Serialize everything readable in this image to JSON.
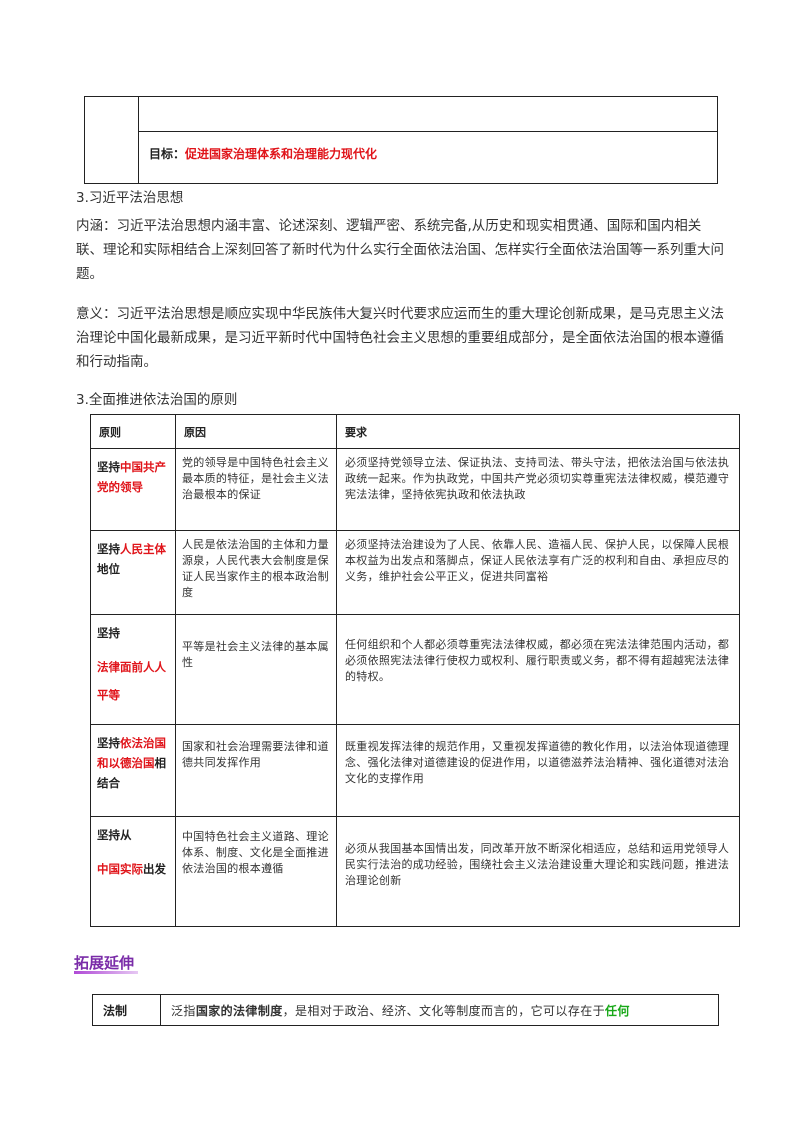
{
  "top_box": {
    "goal_label": "目标：",
    "goal_text": "促进国家治理体系和治理能力现代化"
  },
  "section_xi": {
    "heading": "3.习近平法治思想",
    "connotation_label": "内涵：",
    "connotation_text": "习近平法治思想内涵丰富、论述深刻、逻辑严密、系统完备,从历史和现实相贯通、国际和国内相关联、理论和实际相结合上深刻回答了新时代为什么实行全面依法治国、怎样实行全面依法治国等一系列重大问题。",
    "meaning_label": "意义：",
    "meaning_text": "习近平法治思想是顺应实现中华民族伟大复兴时代要求应运而生的重大理论创新成果，是马克思主义法治理论中国化最新成果，是习近平新时代中国特色社会主义思想的重要组成部分，是全面依法治国的根本遵循和行动指南。"
  },
  "section_principles": {
    "heading": "3.全面推进依法治国的原则",
    "headers": [
      "原则",
      "原因",
      "要求"
    ],
    "rows": [
      {
        "p_pre": "坚持",
        "p_red": "中国共产党的领导",
        "p_post": "",
        "reason": "党的领导是中国特色社会主义最本质的特征，是社会主义法治最根本的保证",
        "requirement": "必须坚持党领导立法、保证执法、支持司法、带头守法，把依法治国与依法执政统一起来。作为执政党，中国共产党必须切实尊重宪法法律权威，模范遵守宪法法律，坚持依宪执政和依法执政"
      },
      {
        "p_pre": "坚持",
        "p_red": "人民主体",
        "p_post": "地位",
        "reason": "人民是依法治国的主体和力量源泉，人民代表大会制度是保证人民当家作主的根本政治制度",
        "requirement": "必须坚持法治建设为了人民、依靠人民、造福人民、保护人民，以保障人民根本权益为出发点和落脚点，保证人民依法享有广泛的权利和自由、承担应尽的义务，维护社会公平正义，促进共同富裕"
      },
      {
        "p_pre": "坚持",
        "p_red": "法律面前人人平等",
        "p_post": "",
        "reason": "平等是社会主义法律的基本属性",
        "requirement": "任何组织和个人都必须尊重宪法法律权威，都必须在宪法法律范围内活动，都必须依照宪法法律行使权力或权利、履行职责或义务，都不得有超越宪法法律的特权。"
      },
      {
        "p_pre": "坚持",
        "p_red": "依法治国和以德治国",
        "p_post": "相结合",
        "reason": "国家和社会治理需要法律和道德共同发挥作用",
        "requirement": "既重视发挥法律的规范作用，又重视发挥道德的教化作用，以法治体现道德理念、强化法律对道德建设的促进作用，以道德滋养法治精神、强化道德对法治文化的支撑作用"
      },
      {
        "p_pre": "坚持从",
        "p_red": "中国实际",
        "p_post": "出发",
        "reason": "中国特色社会主义道路、理论体系、制度、文化是全面推进依法治国的根本遵循",
        "requirement": "必须从我国基本国情出发，同改革开放不断深化相适应，总结和运用党领导人民实行法治的成功经验，围绕社会主义法治建设重大理论和实践问题，推进法治理论创新"
      }
    ]
  },
  "extension": {
    "heading": "拓展延伸",
    "term": "法制",
    "def_pre": "泛指",
    "def_bold": "国家的法律制度",
    "def_mid": "，是相对于政治、经济、文化等制度而言的，它可以存在于",
    "def_green": "任何"
  }
}
